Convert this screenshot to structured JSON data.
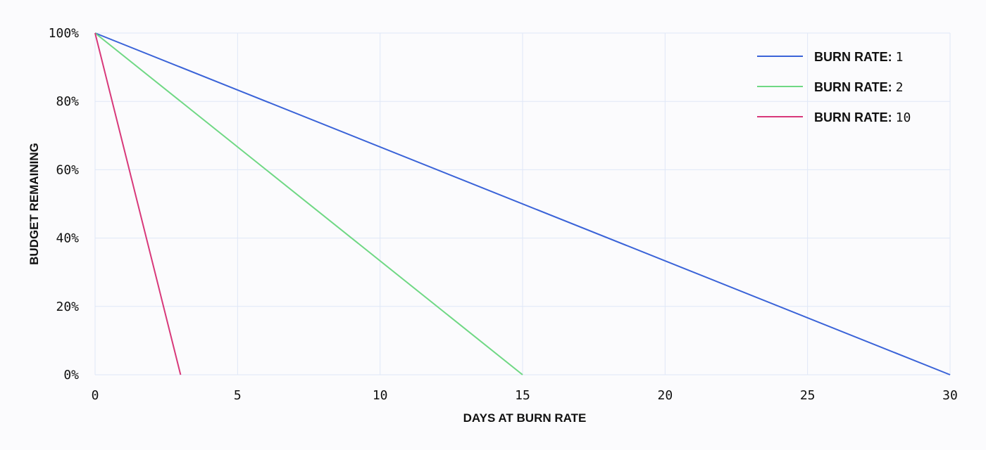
{
  "chart_data": {
    "type": "line",
    "title": "",
    "xlabel": "DAYS AT BURN RATE",
    "ylabel": "BUDGET REMAINING",
    "xlim": [
      0,
      30
    ],
    "ylim": [
      0,
      100
    ],
    "x_ticks": [
      0,
      5,
      10,
      15,
      20,
      25,
      30
    ],
    "x_tick_labels": [
      "0",
      "5",
      "10",
      "15",
      "20",
      "25",
      "30"
    ],
    "y_ticks": [
      0,
      20,
      40,
      60,
      80,
      100
    ],
    "y_tick_labels": [
      "0%",
      "20%",
      "40%",
      "60%",
      "80%",
      "100%"
    ],
    "grid": true,
    "legend_position": "top-right",
    "series": [
      {
        "name": "BURN RATE: 1",
        "label_bold": "BURN RATE:",
        "label_value": "1",
        "color": "#3a63d8",
        "points": [
          [
            0,
            100
          ],
          [
            30,
            0
          ]
        ]
      },
      {
        "name": "BURN RATE: 2",
        "label_bold": "BURN RATE:",
        "label_value": "2",
        "color": "#6fd884",
        "points": [
          [
            0,
            100
          ],
          [
            15,
            0
          ]
        ]
      },
      {
        "name": "BURN RATE: 10",
        "label_bold": "BURN RATE:",
        "label_value": "10",
        "color": "#d8387a",
        "points": [
          [
            0,
            100
          ],
          [
            3,
            0
          ]
        ]
      }
    ]
  },
  "colors": {
    "grid": "#dfe7f7",
    "background": "#fbfbfd",
    "text": "#111111"
  }
}
